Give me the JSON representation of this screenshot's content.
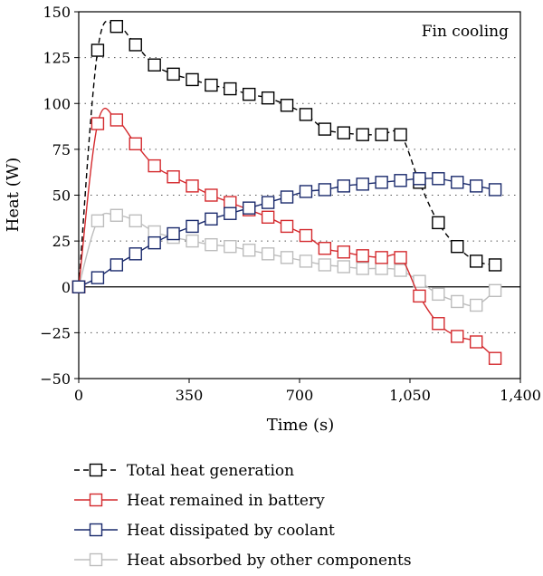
{
  "chart_data": {
    "type": "line",
    "title": "",
    "annotation": "Fin cooling",
    "xlabel": "Time (s)",
    "ylabel": "Heat (W)",
    "xlim": [
      0,
      1400
    ],
    "ylim": [
      -50,
      150
    ],
    "x_ticks": [
      0,
      350,
      700,
      1050,
      1400
    ],
    "x_tick_labels": [
      "0",
      "350",
      "700",
      "1,050",
      "1,400"
    ],
    "y_ticks": [
      -50,
      -25,
      0,
      25,
      50,
      75,
      100,
      125,
      150
    ],
    "y_tick_labels": [
      "−50",
      "−25",
      "0",
      "25",
      "50",
      "75",
      "100",
      "125",
      "150"
    ],
    "grid": "horizontal dotted",
    "legend": "bottom",
    "series": [
      {
        "name": "Total heat generation",
        "color": "#000000",
        "line_style": "dashed",
        "marker": "square-open",
        "x": [
          0,
          60,
          120,
          180,
          240,
          300,
          360,
          420,
          480,
          540,
          600,
          660,
          720,
          780,
          840,
          900,
          960,
          1020,
          1080,
          1140,
          1200,
          1260,
          1320
        ],
        "y": [
          0,
          129,
          142,
          132,
          121,
          116,
          113,
          110,
          108,
          105,
          103,
          99,
          94,
          86,
          84,
          83,
          83,
          83,
          57,
          35,
          22,
          14,
          12
        ]
      },
      {
        "name": "Heat remained in battery",
        "color": "#d42a2e",
        "line_style": "solid",
        "marker": "square-open",
        "x": [
          0,
          60,
          120,
          180,
          240,
          300,
          360,
          420,
          480,
          540,
          600,
          660,
          720,
          780,
          840,
          900,
          960,
          1020,
          1080,
          1140,
          1200,
          1260,
          1320
        ],
        "y": [
          0,
          89,
          91,
          78,
          66,
          60,
          55,
          50,
          46,
          42,
          38,
          33,
          28,
          21,
          19,
          17,
          16,
          16,
          -5,
          -20,
          -27,
          -30,
          -39
        ]
      },
      {
        "name": "Heat dissipated by coolant",
        "color": "#1a2a6c",
        "line_style": "solid",
        "marker": "square-open",
        "x": [
          0,
          60,
          120,
          180,
          240,
          300,
          360,
          420,
          480,
          540,
          600,
          660,
          720,
          780,
          840,
          900,
          960,
          1020,
          1080,
          1140,
          1200,
          1260,
          1320
        ],
        "y": [
          0,
          5,
          12,
          18,
          24,
          29,
          33,
          37,
          40,
          43,
          46,
          49,
          52,
          53,
          55,
          56,
          57,
          58,
          59,
          59,
          57,
          55,
          53
        ]
      },
      {
        "name": "Heat absorbed by other components",
        "color": "#bdbdbd",
        "line_style": "solid",
        "marker": "square-open",
        "x": [
          0,
          60,
          120,
          180,
          240,
          300,
          360,
          420,
          480,
          540,
          600,
          660,
          720,
          780,
          840,
          900,
          960,
          1020,
          1080,
          1140,
          1200,
          1260,
          1320
        ],
        "y": [
          0,
          36,
          39,
          36,
          30,
          27,
          25,
          23,
          22,
          20,
          18,
          16,
          14,
          12,
          11,
          10,
          10,
          9,
          3,
          -4,
          -8,
          -10,
          -2
        ]
      }
    ]
  }
}
